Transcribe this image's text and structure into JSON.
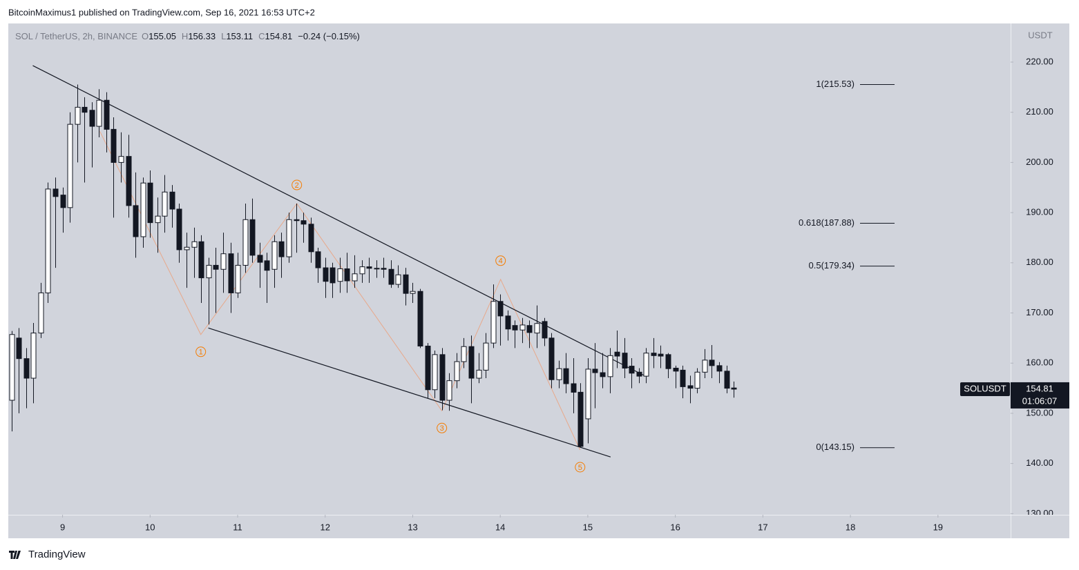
{
  "header": {
    "published": "BitcoinMaximus1 published on TradingView.com, Sep 16, 2021 16:53 UTC+2",
    "brand": "TradingView"
  },
  "chart_data": {
    "type": "candlestick",
    "symbol": "SOL / TetherUS, 2h, BINANCE",
    "ohlc_labels": [
      "O",
      "H",
      "L",
      "C"
    ],
    "change": "−0.24 (−0.15%)",
    "axis_unit": "USDT",
    "price_tag": {
      "name": "SOLUSDT",
      "countdown": "01:06:07"
    },
    "x": [
      8.417,
      8.5,
      8.583,
      8.667,
      8.75,
      8.833,
      8.917,
      9,
      9.083,
      9.167,
      9.25,
      9.333,
      9.417,
      9.5,
      9.583,
      9.667,
      9.75,
      9.833,
      9.917,
      10,
      10.083,
      10.167,
      10.25,
      10.333,
      10.417,
      10.5,
      10.583,
      10.667,
      10.75,
      10.833,
      10.917,
      11,
      11.083,
      11.167,
      11.25,
      11.333,
      11.417,
      11.5,
      11.583,
      11.667,
      11.75,
      11.833,
      11.917,
      12,
      12.083,
      12.167,
      12.25,
      12.333,
      12.417,
      12.5,
      12.583,
      12.667,
      12.75,
      12.833,
      12.917,
      13,
      13.083,
      13.167,
      13.25,
      13.333,
      13.417,
      13.5,
      13.583,
      13.667,
      13.75,
      13.833,
      13.917,
      14,
      14.083,
      14.167,
      14.25,
      14.333,
      14.417,
      14.5,
      14.583,
      14.667,
      14.75,
      14.833,
      14.917,
      15,
      15.083,
      15.167,
      15.25,
      15.333,
      15.417,
      15.5,
      15.583,
      15.667,
      15.75,
      15.833,
      15.917,
      16,
      16.083,
      16.167,
      16.25,
      16.333,
      16.417,
      16.5,
      16.583,
      16.667
    ],
    "open": [
      152.6,
      165,
      160.9,
      157,
      166,
      174,
      194.7,
      193.5,
      191,
      207.6,
      211,
      210.4,
      207.2,
      212.4,
      206.6,
      200,
      201.2,
      191.4,
      185.2,
      195.9,
      188,
      189.3,
      194.1,
      190.7,
      182.6,
      183.1,
      184.2,
      177,
      179.5,
      178.7,
      181.8,
      174,
      179.5,
      188.6,
      181.5,
      180.4,
      178.7,
      184.2,
      181.2,
      188.6,
      188.4,
      187.7,
      182.2,
      179,
      179,
      176.3,
      178.8,
      176.4,
      177.8,
      179.2,
      178.9,
      178.9,
      178.7,
      175.7,
      177.6,
      173.9,
      174.3,
      163.4,
      154.7,
      161.7,
      152.6,
      156.5,
      160.3,
      163.3,
      157,
      158.6,
      164,
      172.3,
      169.4,
      167.5,
      166.6,
      167.5,
      166,
      168.3,
      165,
      156.7,
      158.9,
      155.9,
      154.2,
      148.9,
      158.8,
      158.1,
      157.3,
      162.2,
      162,
      159.4,
      158.2,
      157.4,
      162,
      161.8,
      161.7,
      159,
      158.6,
      155.5,
      155,
      158.2,
      160.6,
      159.5,
      158.4,
      155.05
    ],
    "high": [
      166.4,
      167,
      163,
      168,
      176,
      196,
      197,
      195,
      210,
      215.53,
      213,
      212,
      214.6,
      214,
      209,
      206,
      205.5,
      198,
      197,
      198.4,
      193,
      197.5,
      195.5,
      191.8,
      186,
      187,
      185.5,
      181,
      183,
      186,
      184,
      182,
      191.8,
      192.8,
      184,
      182,
      185.5,
      186,
      190,
      191.8,
      190,
      189,
      183,
      181,
      180,
      181,
      182,
      181.5,
      180.5,
      181,
      180.5,
      181,
      180.5,
      179.5,
      179,
      176,
      174.8,
      164,
      162.5,
      163,
      158,
      162,
      165,
      165.5,
      162,
      166,
      175.7,
      173.7,
      170.5,
      168.5,
      169,
      168.5,
      171.5,
      169,
      166,
      160.5,
      162,
      161,
      156,
      161,
      164,
      162,
      163,
      166.5,
      165,
      161,
      159,
      163,
      165,
      163.5,
      162,
      159.5,
      159.5,
      157.5,
      159,
      162.8,
      163.6,
      160.2,
      159.5,
      156.33
    ],
    "low": [
      146.4,
      150,
      151,
      152,
      165,
      172,
      179,
      186,
      188,
      200,
      196,
      199,
      205,
      202,
      189,
      196,
      189,
      181,
      183,
      185,
      182,
      186,
      187,
      180,
      175,
      177,
      172,
      167.7,
      170,
      174,
      170,
      173,
      178,
      180,
      175,
      172,
      175,
      177,
      180,
      182,
      184,
      180,
      176,
      173,
      173,
      174,
      174,
      175,
      176,
      176,
      177,
      177,
      175,
      175,
      171.5,
      172,
      163,
      153,
      153,
      150.6,
      150.5,
      155,
      159,
      152,
      156,
      157,
      163,
      163.5,
      164.5,
      163,
      164,
      163,
      163,
      163.4,
      155,
      155,
      154,
      150,
      143.15,
      144,
      151,
      155,
      154,
      159,
      157,
      155,
      156,
      156,
      159,
      159,
      157,
      155,
      153,
      152,
      154,
      157,
      157,
      156,
      154,
      153.11
    ],
    "close": [
      165.7,
      160.9,
      157,
      166,
      174,
      194.7,
      193.2,
      191,
      207.6,
      211,
      210,
      207.2,
      212.4,
      206.6,
      200,
      201.2,
      191.4,
      185.2,
      195.9,
      188,
      189.3,
      194.1,
      190.7,
      182.6,
      183.1,
      184.2,
      177,
      179.5,
      178.7,
      181.8,
      174,
      179.5,
      188.6,
      181.5,
      180.1,
      178.5,
      184.2,
      181.2,
      188.6,
      188.4,
      187.7,
      182.2,
      179,
      176.3,
      176,
      178.8,
      176.4,
      177.8,
      179.2,
      178.9,
      178.8,
      178.7,
      175.7,
      177.6,
      173.9,
      174.3,
      163.4,
      154.7,
      161.7,
      152.6,
      156.5,
      160.3,
      163.3,
      157,
      158.6,
      164,
      172.3,
      169.4,
      166.8,
      166.6,
      167.6,
      166.1,
      167.9,
      165,
      156.7,
      158.9,
      155.9,
      154.2,
      143.4,
      158.8,
      158.1,
      157.3,
      161.5,
      161.4,
      159,
      158,
      157.4,
      162,
      161.5,
      161.4,
      158.9,
      158.4,
      155.3,
      155,
      158.2,
      160.6,
      159.5,
      158.4,
      155,
      154.81
    ],
    "xlim": [
      8.38,
      19.83
    ],
    "xticks": [
      9,
      10,
      11,
      12,
      13,
      14,
      15,
      16,
      17,
      18,
      19
    ],
    "ylim": [
      129.77,
      227.7
    ],
    "yticks": [
      {
        "value": 130,
        "label": "130.00"
      },
      {
        "value": 140,
        "label": "140.00"
      },
      {
        "value": 150,
        "label": "150.00"
      },
      {
        "value": 160,
        "label": "160.00"
      },
      {
        "value": 170,
        "label": "170.00"
      },
      {
        "value": 180,
        "label": "180.00"
      },
      {
        "value": 190,
        "label": "190.00"
      },
      {
        "value": 200,
        "label": "200.00"
      },
      {
        "value": 210,
        "label": "210.00"
      },
      {
        "value": 220,
        "label": "220.00"
      }
    ],
    "fib_levels": [
      {
        "label": "1(215.53)",
        "value": 215.53
      },
      {
        "label": "0.618(187.88)",
        "value": 187.88
      },
      {
        "label": "0.5(179.34)",
        "value": 179.34
      },
      {
        "label": "0(143.15)",
        "value": 143.15
      }
    ],
    "trendlines": [
      {
        "x": [
          8.66,
          15.66
        ],
        "y": [
          219.3,
          157.4
        ]
      },
      {
        "x": [
          10.665,
          15.26
        ],
        "y": [
          167,
          141.3
        ]
      }
    ],
    "wave_start": {
      "x": 9.426,
      "y": 206.2
    },
    "waves": [
      {
        "label": "1",
        "x": 10.579,
        "y": 165.7
      },
      {
        "label": "2",
        "x": 11.676,
        "y": 191.8
      },
      {
        "label": "3",
        "x": 13.333,
        "y": 150.5
      },
      {
        "label": "4",
        "x": 14.004,
        "y": 176.7
      },
      {
        "label": "5",
        "x": 14.912,
        "y": 142.7
      }
    ],
    "up_color": "#ffffff",
    "down_color": "#131722",
    "wave_color": "#f57c00",
    "wave_line_color": "#e8a88a"
  }
}
